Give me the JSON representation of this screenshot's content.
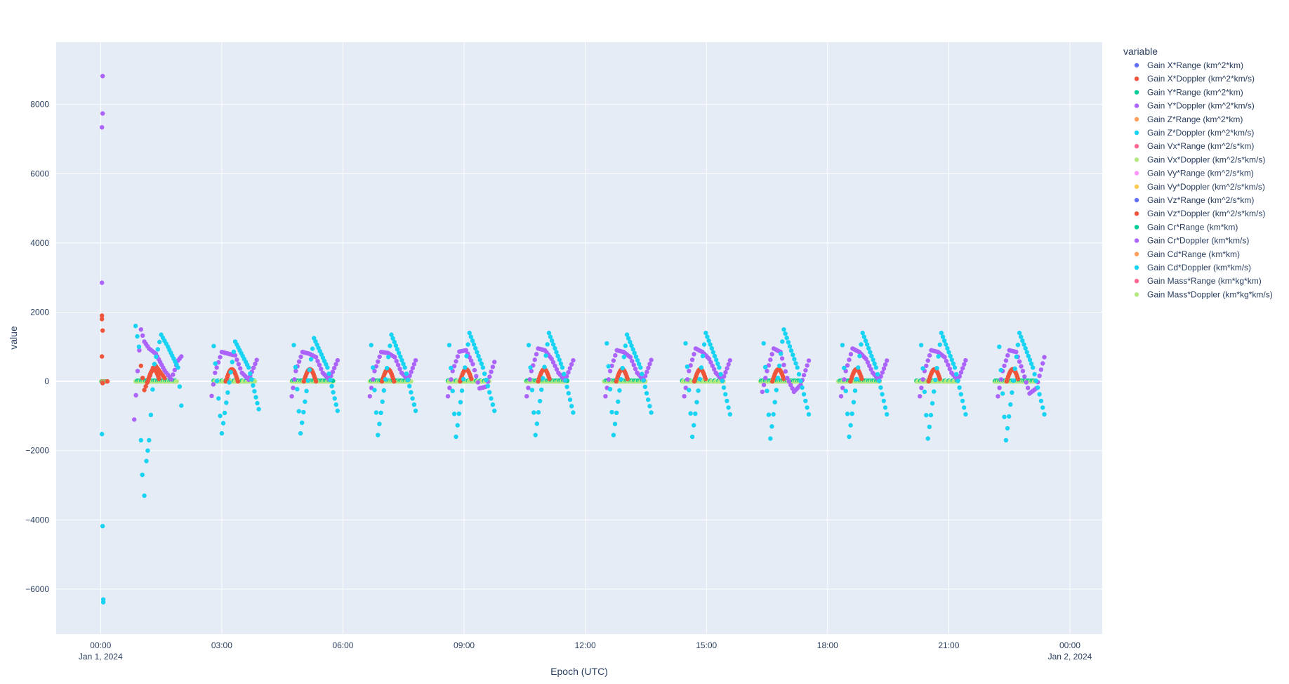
{
  "chart_data": {
    "type": "scatter",
    "xlabel": "Epoch (UTC)",
    "ylabel": "value",
    "x_range": [
      "2023-12-31T22:54:00",
      "2024-01-02T00:48:00"
    ],
    "ylim": [
      -7300,
      9800
    ],
    "y_ticks": [
      -6000,
      -4000,
      -2000,
      0,
      2000,
      4000,
      6000,
      8000
    ],
    "x_ticks": [
      {
        "value": "2024-01-01T00:00",
        "label": "00:00",
        "sublabel": "Jan 1, 2024"
      },
      {
        "value": "2024-01-01T03:00",
        "label": "03:00",
        "sublabel": ""
      },
      {
        "value": "2024-01-01T06:00",
        "label": "06:00",
        "sublabel": ""
      },
      {
        "value": "2024-01-01T09:00",
        "label": "09:00",
        "sublabel": ""
      },
      {
        "value": "2024-01-01T12:00",
        "label": "12:00",
        "sublabel": ""
      },
      {
        "value": "2024-01-01T15:00",
        "label": "15:00",
        "sublabel": ""
      },
      {
        "value": "2024-01-01T18:00",
        "label": "18:00",
        "sublabel": ""
      },
      {
        "value": "2024-01-01T21:00",
        "label": "21:00",
        "sublabel": ""
      },
      {
        "value": "2024-01-02T00:00",
        "label": "00:00",
        "sublabel": "Jan 2, 2024"
      }
    ],
    "grid": true,
    "legend": {
      "title": "variable",
      "position": "right"
    },
    "series": [
      {
        "name": "Gain X*Range (km^2*km)",
        "color": "#636efa"
      },
      {
        "name": "Gain X*Doppler (km^2*km/s)",
        "color": "#EF553B"
      },
      {
        "name": "Gain Y*Range (km^2*km)",
        "color": "#00cc96"
      },
      {
        "name": "Gain Y*Doppler (km^2*km/s)",
        "color": "#ab63fa"
      },
      {
        "name": "Gain Z*Range (km^2*km)",
        "color": "#FFA15A"
      },
      {
        "name": "Gain Z*Doppler (km^2*km/s)",
        "color": "#19d3f3"
      },
      {
        "name": "Gain Vx*Range (km^2/s*km)",
        "color": "#FF6692"
      },
      {
        "name": "Gain Vx*Doppler (km^2/s*km/s)",
        "color": "#B6E880"
      },
      {
        "name": "Gain Vy*Range (km^2/s*km)",
        "color": "#FF97FF"
      },
      {
        "name": "Gain Vy*Doppler (km^2/s*km/s)",
        "color": "#FECB52"
      },
      {
        "name": "Gain Vz*Range (km^2/s*km)",
        "color": "#636efa"
      },
      {
        "name": "Gain Vz*Doppler (km^2/s*km/s)",
        "color": "#EF553B"
      },
      {
        "name": "Gain Cr*Range (km*km)",
        "color": "#00cc96"
      },
      {
        "name": "Gain Cr*Doppler (km*km/s)",
        "color": "#ab63fa"
      },
      {
        "name": "Gain Cd*Range (km*km)",
        "color": "#FFA15A"
      },
      {
        "name": "Gain Cd*Doppler (km*km/s)",
        "color": "#19d3f3"
      },
      {
        "name": "Gain Mass*Range (km*kg*km)",
        "color": "#FF6692"
      },
      {
        "name": "Gain Mass*Doppler (km*kg*km/s)",
        "color": "#B6E880"
      }
    ],
    "points": {
      "Gain Y*Doppler (km^2*km/s)": [
        [
          "2024-01-01T00:03",
          8820
        ],
        [
          "2024-01-01T00:03",
          7740
        ],
        [
          "2024-01-01T00:02",
          7340
        ],
        [
          "2024-01-01T00:02",
          2850
        ],
        [
          "2024-01-01T00:50",
          -1100
        ],
        [
          "2024-01-01T00:55",
          300
        ],
        [
          "2024-01-01T01:00",
          1500
        ],
        [
          "2024-01-01T01:05",
          1150
        ],
        [
          "2024-01-01T01:12",
          950
        ],
        [
          "2024-01-01T01:22",
          800
        ],
        [
          "2024-01-01T01:35",
          320
        ],
        [
          "2024-01-01T01:45",
          60
        ],
        [
          "2024-01-01T01:55",
          600
        ],
        [
          "2024-01-01T02:00",
          720
        ],
        [
          "2024-01-01T02:45",
          -420
        ],
        [
          "2024-01-01T02:50",
          250
        ],
        [
          "2024-01-01T03:00",
          850
        ],
        [
          "2024-01-01T03:10",
          800
        ],
        [
          "2024-01-01T03:20",
          750
        ],
        [
          "2024-01-01T03:30",
          250
        ],
        [
          "2024-01-01T03:40",
          50
        ],
        [
          "2024-01-01T03:52",
          620
        ],
        [
          "2024-01-01T04:44",
          -430
        ],
        [
          "2024-01-01T04:50",
          300
        ],
        [
          "2024-01-01T05:00",
          850
        ],
        [
          "2024-01-01T05:10",
          800
        ],
        [
          "2024-01-01T05:20",
          700
        ],
        [
          "2024-01-01T05:30",
          250
        ],
        [
          "2024-01-01T05:40",
          50
        ],
        [
          "2024-01-01T05:52",
          610
        ],
        [
          "2024-01-01T06:40",
          -430
        ],
        [
          "2024-01-01T06:47",
          300
        ],
        [
          "2024-01-01T06:57",
          850
        ],
        [
          "2024-01-01T07:07",
          820
        ],
        [
          "2024-01-01T07:17",
          700
        ],
        [
          "2024-01-01T07:27",
          250
        ],
        [
          "2024-01-01T07:37",
          50
        ],
        [
          "2024-01-01T07:48",
          610
        ],
        [
          "2024-01-01T08:36",
          -430
        ],
        [
          "2024-01-01T08:43",
          300
        ],
        [
          "2024-01-01T08:53",
          860
        ],
        [
          "2024-01-01T09:03",
          900
        ],
        [
          "2024-01-01T09:13",
          500
        ],
        [
          "2024-01-01T09:23",
          -200
        ],
        [
          "2024-01-01T09:33",
          -150
        ],
        [
          "2024-01-01T09:45",
          560
        ],
        [
          "2024-01-01T10:33",
          -430
        ],
        [
          "2024-01-01T10:40",
          300
        ],
        [
          "2024-01-01T10:50",
          950
        ],
        [
          "2024-01-01T11:00",
          900
        ],
        [
          "2024-01-01T11:10",
          650
        ],
        [
          "2024-01-01T11:20",
          250
        ],
        [
          "2024-01-01T11:30",
          30
        ],
        [
          "2024-01-01T11:42",
          610
        ],
        [
          "2024-01-01T12:30",
          -430
        ],
        [
          "2024-01-01T12:37",
          300
        ],
        [
          "2024-01-01T12:47",
          900
        ],
        [
          "2024-01-01T12:57",
          850
        ],
        [
          "2024-01-01T13:07",
          700
        ],
        [
          "2024-01-01T13:17",
          250
        ],
        [
          "2024-01-01T13:27",
          40
        ],
        [
          "2024-01-01T13:38",
          620
        ],
        [
          "2024-01-01T14:27",
          -430
        ],
        [
          "2024-01-01T14:34",
          300
        ],
        [
          "2024-01-01T14:44",
          950
        ],
        [
          "2024-01-01T14:54",
          850
        ],
        [
          "2024-01-01T15:04",
          650
        ],
        [
          "2024-01-01T15:14",
          250
        ],
        [
          "2024-01-01T15:24",
          30
        ],
        [
          "2024-01-01T15:35",
          610
        ],
        [
          "2024-01-01T16:23",
          -300
        ],
        [
          "2024-01-01T16:30",
          300
        ],
        [
          "2024-01-01T16:40",
          950
        ],
        [
          "2024-01-01T16:50",
          850
        ],
        [
          "2024-01-01T17:00",
          100
        ],
        [
          "2024-01-01T17:10",
          -300
        ],
        [
          "2024-01-01T17:20",
          -100
        ],
        [
          "2024-01-01T17:32",
          600
        ],
        [
          "2024-01-01T18:20",
          -430
        ],
        [
          "2024-01-01T18:27",
          300
        ],
        [
          "2024-01-01T18:37",
          950
        ],
        [
          "2024-01-01T18:47",
          850
        ],
        [
          "2024-01-01T18:57",
          650
        ],
        [
          "2024-01-01T19:07",
          250
        ],
        [
          "2024-01-01T19:17",
          30
        ],
        [
          "2024-01-01T19:28",
          600
        ],
        [
          "2024-01-01T20:17",
          -430
        ],
        [
          "2024-01-01T20:24",
          300
        ],
        [
          "2024-01-01T20:34",
          900
        ],
        [
          "2024-01-01T20:44",
          850
        ],
        [
          "2024-01-01T20:54",
          700
        ],
        [
          "2024-01-01T21:04",
          250
        ],
        [
          "2024-01-01T21:14",
          30
        ],
        [
          "2024-01-01T21:25",
          610
        ],
        [
          "2024-01-01T22:13",
          -430
        ],
        [
          "2024-01-01T22:20",
          300
        ],
        [
          "2024-01-01T22:30",
          900
        ],
        [
          "2024-01-01T22:40",
          850
        ],
        [
          "2024-01-01T22:50",
          300
        ],
        [
          "2024-01-01T23:00",
          -350
        ],
        [
          "2024-01-01T23:10",
          -200
        ],
        [
          "2024-01-01T23:22",
          700
        ]
      ],
      "Gain X*Doppler (km^2*km/s)": [
        [
          "2024-01-01T00:02",
          1900
        ],
        [
          "2024-01-01T00:02",
          1800
        ],
        [
          "2024-01-01T00:03",
          1470
        ],
        [
          "2024-01-01T00:02",
          720
        ],
        [
          "2024-01-01T00:03",
          -50
        ],
        [
          "2024-01-01T01:00",
          450
        ],
        [
          "2024-01-01T01:05",
          -250
        ],
        [
          "2024-01-01T01:20",
          500
        ],
        [
          "2024-01-01T01:35",
          100
        ]
      ],
      "Gain Z*Doppler (km^2*km/s)": [
        [
          "2024-01-01T00:02",
          -1520
        ],
        [
          "2024-01-01T00:03",
          -4180
        ],
        [
          "2024-01-01T00:04",
          -6300
        ],
        [
          "2024-01-01T00:04",
          -6380
        ],
        [
          "2024-01-01T00:52",
          1600
        ],
        [
          "2024-01-01T00:57",
          1000
        ],
        [
          "2024-01-01T01:00",
          -1700
        ],
        [
          "2024-01-01T01:02",
          -2700
        ],
        [
          "2024-01-01T01:05",
          -3300
        ],
        [
          "2024-01-01T01:08",
          -2300
        ],
        [
          "2024-01-01T01:12",
          -1700
        ],
        [
          "2024-01-01T01:20",
          500
        ],
        [
          "2024-01-01T01:30",
          1350
        ],
        [
          "2024-01-01T01:40",
          1000
        ],
        [
          "2024-01-01T01:55",
          400
        ],
        [
          "2024-01-01T02:00",
          -700
        ],
        [
          "2024-01-01T02:48",
          1020
        ],
        [
          "2024-01-01T03:00",
          -1500
        ],
        [
          "2024-01-01T03:20",
          1150
        ],
        [
          "2024-01-01T03:40",
          400
        ],
        [
          "2024-01-01T03:55",
          -800
        ],
        [
          "2024-01-01T04:47",
          1050
        ],
        [
          "2024-01-01T04:57",
          -1500
        ],
        [
          "2024-01-01T05:17",
          1250
        ],
        [
          "2024-01-01T05:37",
          400
        ],
        [
          "2024-01-01T05:52",
          -850
        ],
        [
          "2024-01-01T06:42",
          1050
        ],
        [
          "2024-01-01T06:52",
          -1550
        ],
        [
          "2024-01-01T07:12",
          1350
        ],
        [
          "2024-01-01T07:32",
          400
        ],
        [
          "2024-01-01T07:48",
          -850
        ],
        [
          "2024-01-01T08:38",
          1050
        ],
        [
          "2024-01-01T08:48",
          -1600
        ],
        [
          "2024-01-01T09:08",
          1400
        ],
        [
          "2024-01-01T09:28",
          400
        ],
        [
          "2024-01-01T09:45",
          -850
        ],
        [
          "2024-01-01T10:36",
          1050
        ],
        [
          "2024-01-01T10:46",
          -1550
        ],
        [
          "2024-01-01T11:06",
          1400
        ],
        [
          "2024-01-01T11:26",
          400
        ],
        [
          "2024-01-01T11:42",
          -900
        ],
        [
          "2024-01-01T12:32",
          1100
        ],
        [
          "2024-01-01T12:42",
          -1550
        ],
        [
          "2024-01-01T13:02",
          1350
        ],
        [
          "2024-01-01T13:22",
          400
        ],
        [
          "2024-01-01T13:38",
          -900
        ],
        [
          "2024-01-01T14:29",
          1100
        ],
        [
          "2024-01-01T14:39",
          -1600
        ],
        [
          "2024-01-01T14:59",
          1400
        ],
        [
          "2024-01-01T15:19",
          400
        ],
        [
          "2024-01-01T15:35",
          -950
        ],
        [
          "2024-01-01T16:25",
          1100
        ],
        [
          "2024-01-01T16:35",
          -1650
        ],
        [
          "2024-01-01T16:55",
          1500
        ],
        [
          "2024-01-01T17:15",
          400
        ],
        [
          "2024-01-01T17:32",
          -950
        ],
        [
          "2024-01-01T18:22",
          1050
        ],
        [
          "2024-01-01T18:32",
          -1600
        ],
        [
          "2024-01-01T18:52",
          1400
        ],
        [
          "2024-01-01T19:12",
          400
        ],
        [
          "2024-01-01T19:28",
          -950
        ],
        [
          "2024-01-01T20:19",
          1050
        ],
        [
          "2024-01-01T20:29",
          -1650
        ],
        [
          "2024-01-01T20:49",
          1400
        ],
        [
          "2024-01-01T21:09",
          400
        ],
        [
          "2024-01-01T21:25",
          -950
        ],
        [
          "2024-01-01T22:15",
          1000
        ],
        [
          "2024-01-01T22:25",
          -1700
        ],
        [
          "2024-01-01T22:45",
          1400
        ],
        [
          "2024-01-01T23:05",
          400
        ],
        [
          "2024-01-01T23:22",
          -950
        ]
      ]
    }
  }
}
